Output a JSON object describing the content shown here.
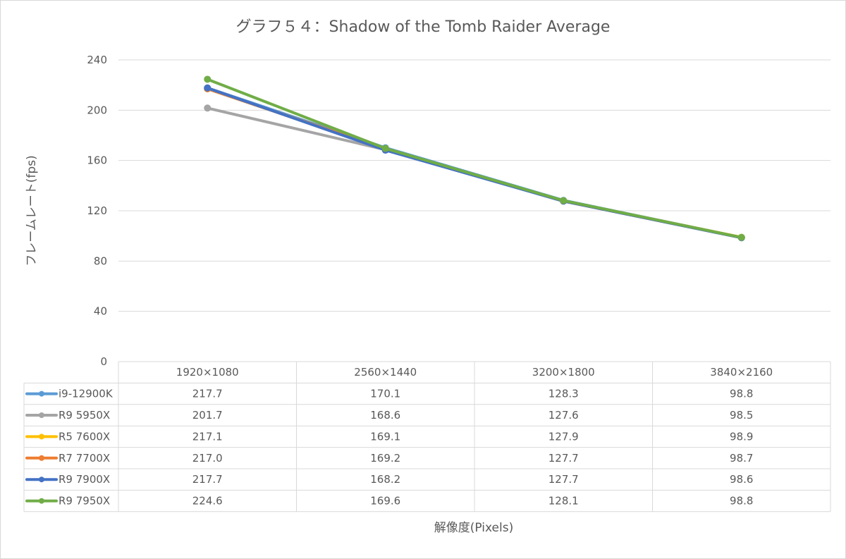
{
  "chart_data": {
    "type": "line",
    "title": "グラフ５４：Shadow of the Tomb Raider Average",
    "xlabel": "解像度(Pixels)",
    "ylabel": "フレームレート(fps)",
    "ylim": [
      0,
      240
    ],
    "yticks": [
      "0",
      "40",
      "80",
      "120",
      "160",
      "200",
      "240"
    ],
    "categories": [
      "1920×1080",
      "2560×1440",
      "3200×1800",
      "3840×2160"
    ],
    "grid": true,
    "legend": "data-table",
    "series": [
      {
        "name": "i9-12900K",
        "color": "#5b9bd5",
        "values": [
          217.7,
          170.1,
          128.3,
          98.8
        ],
        "labels": [
          "217.7",
          "170.1",
          "128.3",
          "98.8"
        ]
      },
      {
        "name": "R9 5950X",
        "color": "#a5a5a5",
        "values": [
          201.7,
          168.6,
          127.6,
          98.5
        ],
        "labels": [
          "201.7",
          "168.6",
          "127.6",
          "98.5"
        ]
      },
      {
        "name": "R5 7600X",
        "color": "#ffc000",
        "values": [
          217.1,
          169.1,
          127.9,
          98.9
        ],
        "labels": [
          "217.1",
          "169.1",
          "127.9",
          "98.9"
        ]
      },
      {
        "name": "R7 7700X",
        "color": "#ed7d31",
        "values": [
          217.0,
          169.2,
          127.7,
          98.7
        ],
        "labels": [
          "217.0",
          "169.2",
          "127.7",
          "98.7"
        ]
      },
      {
        "name": "R9 7900X",
        "color": "#4472c4",
        "values": [
          217.7,
          168.2,
          127.7,
          98.6
        ],
        "labels": [
          "217.7",
          "168.2",
          "127.7",
          "98.6"
        ]
      },
      {
        "name": "R9 7950X",
        "color": "#70ad47",
        "values": [
          224.6,
          169.6,
          128.1,
          98.8
        ],
        "labels": [
          "224.6",
          "169.6",
          "128.1",
          "98.8"
        ]
      }
    ]
  }
}
